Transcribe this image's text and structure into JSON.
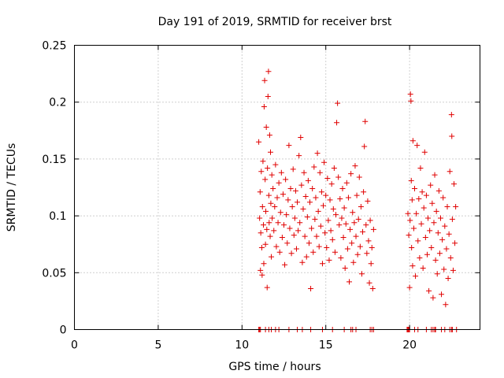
{
  "chart_data": {
    "type": "scatter",
    "title": "Day 191 of 2019, SRMTID for receiver brst",
    "xlabel": "GPS time / hours",
    "ylabel": "SRMTID / TECUs",
    "xlim": [
      0,
      24.2
    ],
    "ylim": [
      0,
      0.25
    ],
    "xticks": [
      0,
      5,
      10,
      15,
      20
    ],
    "xtick_labels": [
      "0",
      "5",
      "10",
      "15",
      "20"
    ],
    "yticks": [
      0,
      0.05,
      0.1,
      0.15,
      0.2,
      0.25
    ],
    "ytick_labels": [
      "0",
      "0.05",
      "0.1",
      "0.15",
      "0.2",
      "0.25"
    ],
    "grid": true,
    "marker": "+",
    "color": "#e00000",
    "series": [
      {
        "name": "SRMTID",
        "points": [
          [
            11.0,
            0.165
          ],
          [
            11.05,
            0.098
          ],
          [
            11.08,
            0.121
          ],
          [
            11.1,
            0.052
          ],
          [
            11.12,
            0.085
          ],
          [
            11.15,
            0.139
          ],
          [
            11.18,
            0.072
          ],
          [
            11.2,
            0.048
          ],
          [
            11.22,
            0.108
          ],
          [
            11.25,
            0.148
          ],
          [
            11.28,
            0.092
          ],
          [
            11.3,
            0.058
          ],
          [
            11.32,
            0.196
          ],
          [
            11.35,
            0.219
          ],
          [
            11.38,
            0.132
          ],
          [
            11.4,
            0.075
          ],
          [
            11.42,
            0.104
          ],
          [
            11.45,
            0.178
          ],
          [
            11.48,
            0.088
          ],
          [
            11.5,
            0.037
          ],
          [
            11.52,
            0.142
          ],
          [
            11.55,
            0.205
          ],
          [
            11.58,
            0.227
          ],
          [
            11.6,
            0.118
          ],
          [
            11.62,
            0.094
          ],
          [
            11.65,
            0.171
          ],
          [
            11.68,
            0.082
          ],
          [
            11.7,
            0.156
          ],
          [
            11.72,
            0.111
          ],
          [
            11.75,
            0.064
          ],
          [
            11.78,
            0.136
          ],
          [
            11.8,
            0.098
          ],
          [
            11.85,
            0.124
          ],
          [
            11.9,
            0.087
          ],
          [
            11.95,
            0.108
          ],
          [
            12.0,
            0.145
          ],
          [
            12.05,
            0.073
          ],
          [
            12.1,
            0.116
          ],
          [
            12.15,
            0.094
          ],
          [
            12.2,
            0.129
          ],
          [
            12.25,
            0.068
          ],
          [
            12.3,
            0.103
          ],
          [
            12.35,
            0.138
          ],
          [
            12.4,
            0.081
          ],
          [
            12.45,
            0.119
          ],
          [
            12.5,
            0.092
          ],
          [
            12.55,
            0.057
          ],
          [
            12.6,
            0.132
          ],
          [
            12.65,
            0.101
          ],
          [
            12.7,
            0.076
          ],
          [
            12.75,
            0.114
          ],
          [
            12.8,
            0.162
          ],
          [
            12.85,
            0.089
          ],
          [
            12.9,
            0.124
          ],
          [
            12.95,
            0.067
          ],
          [
            13.0,
            0.108
          ],
          [
            13.05,
            0.141
          ],
          [
            13.1,
            0.083
          ],
          [
            13.15,
            0.098
          ],
          [
            13.2,
            0.122
          ],
          [
            13.25,
            0.071
          ],
          [
            13.3,
            0.112
          ],
          [
            13.35,
            0.087
          ],
          [
            13.4,
            0.153
          ],
          [
            13.45,
            0.094
          ],
          [
            13.5,
            0.169
          ],
          [
            13.55,
            0.127
          ],
          [
            13.6,
            0.059
          ],
          [
            13.65,
            0.106
          ],
          [
            13.7,
            0.138
          ],
          [
            13.75,
            0.082
          ],
          [
            13.8,
            0.117
          ],
          [
            13.85,
            0.064
          ],
          [
            13.9,
            0.099
          ],
          [
            13.95,
            0.131
          ],
          [
            14.0,
            0.076
          ],
          [
            14.05,
            0.112
          ],
          [
            14.1,
            0.036
          ],
          [
            14.15,
            0.089
          ],
          [
            14.2,
            0.124
          ],
          [
            14.25,
            0.068
          ],
          [
            14.3,
            0.143
          ],
          [
            14.35,
            0.097
          ],
          [
            14.4,
            0.116
          ],
          [
            14.45,
            0.082
          ],
          [
            14.5,
            0.155
          ],
          [
            14.55,
            0.104
          ],
          [
            14.6,
            0.073
          ],
          [
            14.65,
            0.138
          ],
          [
            14.7,
            0.091
          ],
          [
            14.75,
            0.121
          ],
          [
            14.8,
            0.058
          ],
          [
            14.85,
            0.109
          ],
          [
            14.9,
            0.147
          ],
          [
            14.95,
            0.085
          ],
          [
            15.0,
            0.118
          ],
          [
            15.05,
            0.072
          ],
          [
            15.1,
            0.133
          ],
          [
            15.15,
            0.096
          ],
          [
            15.2,
            0.061
          ],
          [
            15.25,
            0.114
          ],
          [
            15.3,
            0.087
          ],
          [
            15.35,
            0.128
          ],
          [
            15.4,
            0.079
          ],
          [
            15.45,
            0.106
          ],
          [
            15.5,
            0.142
          ],
          [
            15.55,
            0.068
          ],
          [
            15.6,
            0.101
          ],
          [
            15.65,
            0.182
          ],
          [
            15.7,
            0.199
          ],
          [
            15.75,
            0.134
          ],
          [
            15.8,
            0.092
          ],
          [
            15.85,
            0.115
          ],
          [
            15.9,
            0.063
          ],
          [
            15.95,
            0.098
          ],
          [
            16.0,
            0.124
          ],
          [
            16.05,
            0.081
          ],
          [
            16.1,
            0.107
          ],
          [
            16.15,
            0.054
          ],
          [
            16.2,
            0.093
          ],
          [
            16.25,
            0.129
          ],
          [
            16.3,
            0.071
          ],
          [
            16.35,
            0.116
          ],
          [
            16.4,
            0.042
          ],
          [
            16.45,
            0.088
          ],
          [
            16.5,
            0.137
          ],
          [
            16.55,
            0.076
          ],
          [
            16.6,
            0.103
          ],
          [
            16.65,
            0.059
          ],
          [
            16.7,
            0.094
          ],
          [
            16.75,
            0.144
          ],
          [
            16.8,
            0.082
          ],
          [
            16.85,
            0.118
          ],
          [
            16.9,
            0.066
          ],
          [
            16.95,
            0.097
          ],
          [
            17.0,
            0.134
          ],
          [
            17.05,
            0.073
          ],
          [
            17.1,
            0.108
          ],
          [
            17.15,
            0.049
          ],
          [
            17.2,
            0.086
          ],
          [
            17.25,
            0.121
          ],
          [
            17.3,
            0.161
          ],
          [
            17.35,
            0.183
          ],
          [
            17.4,
            0.092
          ],
          [
            17.45,
            0.067
          ],
          [
            17.5,
            0.113
          ],
          [
            17.55,
            0.078
          ],
          [
            17.6,
            0.041
          ],
          [
            17.65,
            0.096
          ],
          [
            17.7,
            0.058
          ],
          [
            17.75,
            0.072
          ],
          [
            17.8,
            0.036
          ],
          [
            17.85,
            0.088
          ],
          [
            19.9,
            0.102
          ],
          [
            19.95,
            0.083
          ],
          [
            20.0,
            0.037
          ],
          [
            20.03,
            0.096
          ],
          [
            20.05,
            0.207
          ],
          [
            20.08,
            0.201
          ],
          [
            20.1,
            0.131
          ],
          [
            20.12,
            0.072
          ],
          [
            20.15,
            0.114
          ],
          [
            20.18,
            0.056
          ],
          [
            20.2,
            0.166
          ],
          [
            20.25,
            0.089
          ],
          [
            20.3,
            0.124
          ],
          [
            20.35,
            0.047
          ],
          [
            20.4,
            0.102
          ],
          [
            20.45,
            0.162
          ],
          [
            20.5,
            0.078
          ],
          [
            20.55,
            0.115
          ],
          [
            20.6,
            0.063
          ],
          [
            20.65,
            0.142
          ],
          [
            20.7,
            0.093
          ],
          [
            20.75,
            0.121
          ],
          [
            20.8,
            0.054
          ],
          [
            20.85,
            0.107
          ],
          [
            20.9,
            0.156
          ],
          [
            20.95,
            0.081
          ],
          [
            21.0,
            0.118
          ],
          [
            21.05,
            0.066
          ],
          [
            21.1,
            0.098
          ],
          [
            21.15,
            0.034
          ],
          [
            21.2,
            0.087
          ],
          [
            21.25,
            0.127
          ],
          [
            21.3,
            0.072
          ],
          [
            21.35,
            0.111
          ],
          [
            21.4,
            0.028
          ],
          [
            21.45,
            0.094
          ],
          [
            21.5,
            0.136
          ],
          [
            21.55,
            0.061
          ],
          [
            21.6,
            0.104
          ],
          [
            21.65,
            0.049
          ],
          [
            21.7,
            0.085
          ],
          [
            21.75,
            0.122
          ],
          [
            21.8,
            0.067
          ],
          [
            21.85,
            0.098
          ],
          [
            21.9,
            0.031
          ],
          [
            21.95,
            0.079
          ],
          [
            22.0,
            0.116
          ],
          [
            22.05,
            0.053
          ],
          [
            22.1,
            0.091
          ],
          [
            22.15,
            0.022
          ],
          [
            22.2,
            0.071
          ],
          [
            22.25,
            0.108
          ],
          [
            22.3,
            0.045
          ],
          [
            22.35,
            0.084
          ],
          [
            22.4,
            0.139
          ],
          [
            22.45,
            0.063
          ],
          [
            22.5,
            0.189
          ],
          [
            22.52,
            0.17
          ],
          [
            22.55,
            0.097
          ],
          [
            22.6,
            0.052
          ],
          [
            22.65,
            0.128
          ],
          [
            22.7,
            0.076
          ],
          [
            22.75,
            0.108
          ]
        ],
        "zero_points": [
          11.0,
          11.05,
          11.1,
          11.4,
          11.6,
          11.75,
          12.0,
          12.2,
          12.8,
          13.3,
          13.6,
          14.1,
          14.8,
          15.4,
          16.1,
          16.5,
          16.6,
          16.8,
          17.65,
          17.75,
          17.85,
          19.85,
          19.9,
          19.95,
          20.0,
          20.3,
          20.5,
          21.0,
          21.3,
          21.4,
          21.5,
          21.55,
          21.9,
          22.1,
          22.4,
          22.5,
          22.55,
          22.8
        ]
      }
    ]
  }
}
